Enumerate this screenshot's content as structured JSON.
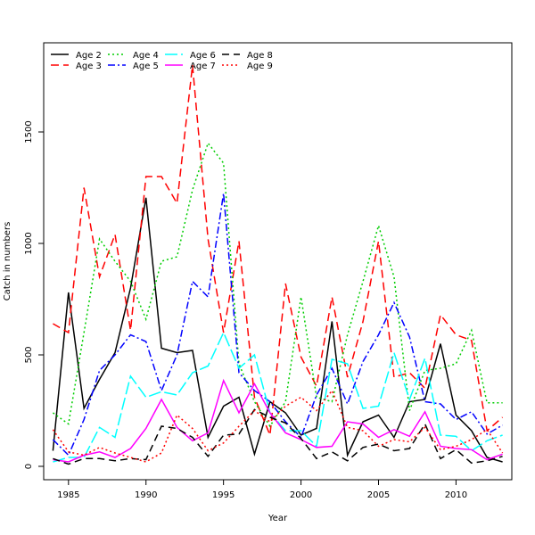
{
  "chart_data": {
    "type": "line",
    "xlabel": "Year",
    "ylabel": "Catch in numbers",
    "xlim": [
      1983.4,
      2013.6
    ],
    "ylim": [
      -60,
      1900
    ],
    "x_ticks": [
      1985,
      1990,
      1995,
      2000,
      2005,
      2010
    ],
    "y_ticks": [
      0,
      500,
      1000,
      1500
    ],
    "legend_position": "top-left",
    "x": [
      1984,
      1985,
      1986,
      1987,
      1988,
      1989,
      1990,
      1991,
      1992,
      1993,
      1994,
      1995,
      1996,
      1997,
      1998,
      1999,
      2000,
      2001,
      2002,
      2003,
      2004,
      2005,
      2006,
      2007,
      2008,
      2009,
      2010,
      2011,
      2012,
      2013
    ],
    "series": [
      {
        "name": "Age 2",
        "color": "#000000",
        "dash": "",
        "values": [
          70,
          780,
          260,
          390,
          510,
          800,
          1205,
          530,
          510,
          520,
          130,
          270,
          310,
          55,
          290,
          240,
          140,
          170,
          650,
          50,
          200,
          230,
          130,
          290,
          300,
          550,
          230,
          160,
          40,
          20
        ]
      },
      {
        "name": "Age 3",
        "color": "#ff0000",
        "dash": "9,5",
        "values": [
          640,
          600,
          1250,
          850,
          1040,
          610,
          1300,
          1300,
          1180,
          1800,
          1020,
          600,
          1010,
          310,
          140,
          820,
          490,
          360,
          760,
          400,
          650,
          1010,
          400,
          420,
          350,
          680,
          590,
          565,
          160,
          220
        ]
      },
      {
        "name": "Age 4",
        "color": "#00cd00",
        "dash": "2,3",
        "values": [
          240,
          190,
          600,
          1020,
          920,
          830,
          660,
          920,
          940,
          1240,
          1450,
          1360,
          460,
          290,
          180,
          290,
          760,
          310,
          290,
          590,
          830,
          1080,
          850,
          250,
          430,
          440,
          460,
          610,
          285,
          285
        ]
      },
      {
        "name": "Age 5",
        "color": "#0000ff",
        "dash": "8,3,2,3",
        "values": [
          120,
          50,
          210,
          430,
          500,
          590,
          560,
          340,
          500,
          830,
          760,
          1225,
          420,
          340,
          290,
          200,
          130,
          320,
          440,
          280,
          470,
          590,
          735,
          580,
          290,
          280,
          210,
          245,
          145,
          185
        ]
      },
      {
        "name": "Age 6",
        "color": "#00ffff",
        "dash": "14,4",
        "values": [
          20,
          40,
          40,
          175,
          130,
          405,
          310,
          335,
          320,
          420,
          450,
          600,
          440,
          500,
          240,
          160,
          160,
          90,
          480,
          460,
          260,
          270,
          510,
          300,
          485,
          140,
          135,
          70,
          115,
          140
        ]
      },
      {
        "name": "Age 7",
        "color": "#ff00ff",
        "dash": "",
        "values": [
          30,
          20,
          50,
          65,
          40,
          80,
          170,
          300,
          175,
          115,
          150,
          385,
          240,
          370,
          240,
          150,
          120,
          85,
          90,
          200,
          190,
          130,
          165,
          135,
          245,
          90,
          80,
          75,
          30,
          55
        ]
      },
      {
        "name": "Age 8",
        "color": "#000000",
        "dash": "8,5",
        "values": [
          35,
          10,
          35,
          35,
          25,
          35,
          30,
          180,
          170,
          130,
          45,
          140,
          145,
          255,
          220,
          195,
          125,
          35,
          65,
          25,
          85,
          100,
          70,
          80,
          190,
          35,
          75,
          15,
          25,
          45
        ]
      },
      {
        "name": "Age 9",
        "color": "#ff0000",
        "dash": "2,3",
        "values": [
          165,
          65,
          50,
          85,
          60,
          40,
          20,
          60,
          230,
          170,
          70,
          105,
          180,
          250,
          200,
          270,
          310,
          250,
          340,
          175,
          160,
          90,
          120,
          110,
          175,
          75,
          90,
          120,
          165,
          60
        ]
      }
    ]
  }
}
